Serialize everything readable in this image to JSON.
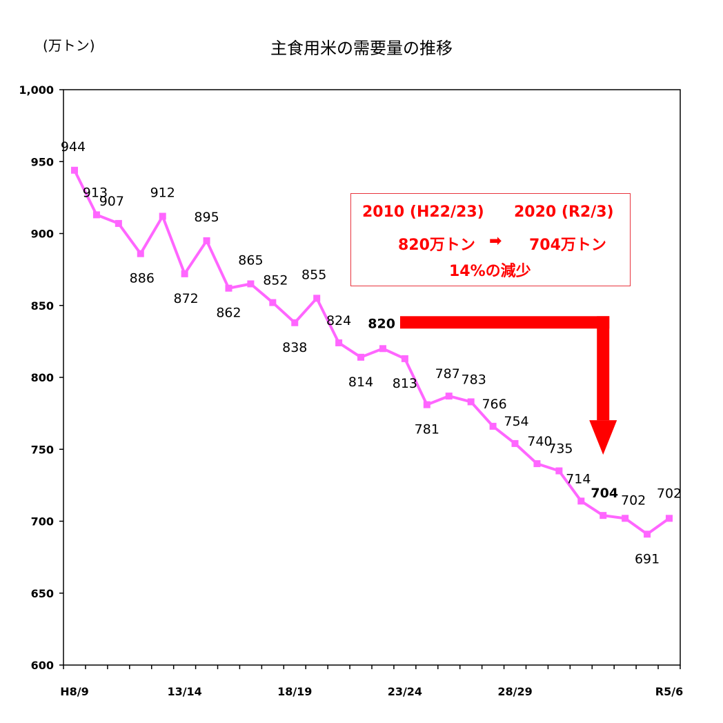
{
  "unit_label": "(万トン)",
  "chart_data": {
    "type": "line",
    "title": "主食用米の需要量の推移",
    "ylabel": "(万トン)",
    "xlabel": "",
    "ylim": [
      600,
      1000
    ],
    "yticks": [
      600,
      650,
      700,
      750,
      800,
      850,
      900,
      950,
      1000
    ],
    "ytick_labels": [
      "600",
      "650",
      "700",
      "750",
      "800",
      "850",
      "900",
      "950",
      "1,000"
    ],
    "categories": [
      "H8/9",
      "",
      "",
      "",
      "",
      "13/14",
      "",
      "",
      "",
      "",
      "18/19",
      "",
      "",
      "",
      "",
      "23/24",
      "",
      "",
      "",
      "",
      "28/29",
      "",
      "",
      "",
      "",
      "",
      "",
      "R5/6"
    ],
    "series": [
      {
        "name": "主食用米の需要量",
        "color": "#ff66ff",
        "values": [
          944,
          913,
          907,
          886,
          912,
          872,
          895,
          862,
          865,
          852,
          838,
          855,
          824,
          814,
          820,
          813,
          781,
          787,
          783,
          766,
          754,
          740,
          735,
          714,
          704,
          702,
          691,
          702
        ]
      }
    ],
    "grid": false,
    "legend": "none",
    "annotations": {
      "highlight_start_label": "820",
      "highlight_end_label": "704",
      "box_line1_left": "2010 (H22/23)",
      "box_line1_right": "2020 (R2/3)",
      "box_line2_left": "820万トン",
      "box_arrow": "➡",
      "box_line2_right": "704万トン",
      "box_line3": "14%の減少",
      "arrow_color": "#ff0000"
    }
  }
}
